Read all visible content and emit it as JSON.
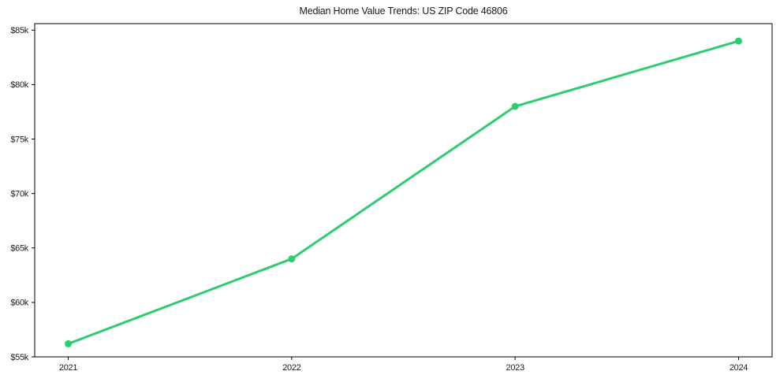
{
  "chart_data": {
    "type": "line",
    "title": "Median Home Value Trends: US ZIP Code 46806",
    "xlabel": "",
    "ylabel": "",
    "categories": [
      "2021",
      "2022",
      "2023",
      "2024"
    ],
    "series": [
      {
        "name": "Median Home Value",
        "values": [
          56200,
          64000,
          78000,
          84000
        ]
      }
    ],
    "yticks": [
      {
        "value": 55000,
        "label": "$55k"
      },
      {
        "value": 60000,
        "label": "$60k"
      },
      {
        "value": 65000,
        "label": "$65k"
      },
      {
        "value": 70000,
        "label": "$70k"
      },
      {
        "value": 75000,
        "label": "$75k"
      },
      {
        "value": 80000,
        "label": "$80k"
      },
      {
        "value": 85000,
        "label": "$85k"
      }
    ],
    "ylim": [
      55000,
      85600
    ],
    "grid": false,
    "legend": "none",
    "boxed_axes": true,
    "style": {
      "line_color": "#2ecc71",
      "marker_color": "#2ecc71",
      "spine_color": "#000000",
      "text_color": "#1a1a1a",
      "background": "#ffffff"
    }
  }
}
